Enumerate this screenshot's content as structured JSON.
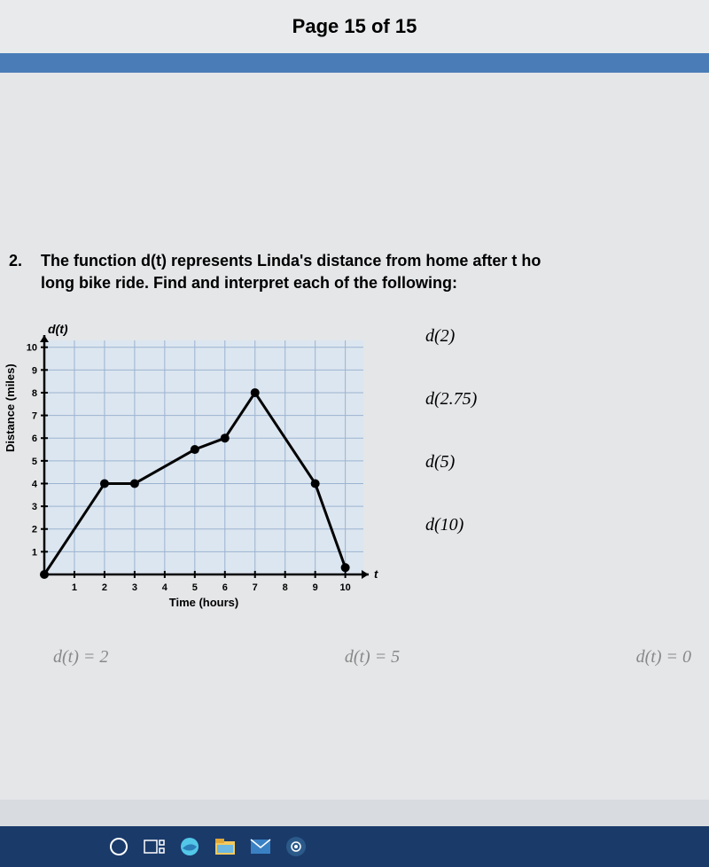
{
  "header": {
    "page_label": "Page 15 of 15"
  },
  "question": {
    "number": "2.",
    "text_line1": "The function d(t) represents Linda's distance from home after t ho",
    "text_line2": "long bike ride. Find and interpret each of the following:"
  },
  "chart": {
    "type": "line",
    "title": "d(t)",
    "xlabel": "Time (hours)",
    "ylabel": "Distance (miles)",
    "xlim": [
      0,
      10.6
    ],
    "ylim": [
      0,
      10.3
    ],
    "xtick_step": 1,
    "ytick_step": 1,
    "grid_color": "#9bb3d1",
    "axis_color": "#000000",
    "background_color": "#dce6f0",
    "line_color": "#000000",
    "line_width": 3,
    "marker_color": "#000000",
    "marker_radius": 5,
    "points": [
      {
        "x": 0,
        "y": 0
      },
      {
        "x": 2,
        "y": 4
      },
      {
        "x": 3,
        "y": 4
      },
      {
        "x": 5,
        "y": 5.5
      },
      {
        "x": 6,
        "y": 6
      },
      {
        "x": 7,
        "y": 8
      },
      {
        "x": 9,
        "y": 4
      },
      {
        "x": 10,
        "y": 0.3
      }
    ]
  },
  "right_labels": {
    "r1": "d(2)",
    "r2": "d(2.75)",
    "r3": "d(5)",
    "r4": "d(10)"
  },
  "bottom_expressions": {
    "e1": "d(t) = 2",
    "e2": "d(t) = 5",
    "e3": "d(t) = 0"
  },
  "taskbar": {
    "icons": [
      "cortana-circle",
      "task-view",
      "edge",
      "file-explorer",
      "mail",
      "groove"
    ]
  },
  "colors": {
    "header_bg": "#e8eaec",
    "blue_bar": "#4a7db8",
    "content_bg": "#e4e6e8",
    "taskbar_bg": "#1a3a6a"
  }
}
